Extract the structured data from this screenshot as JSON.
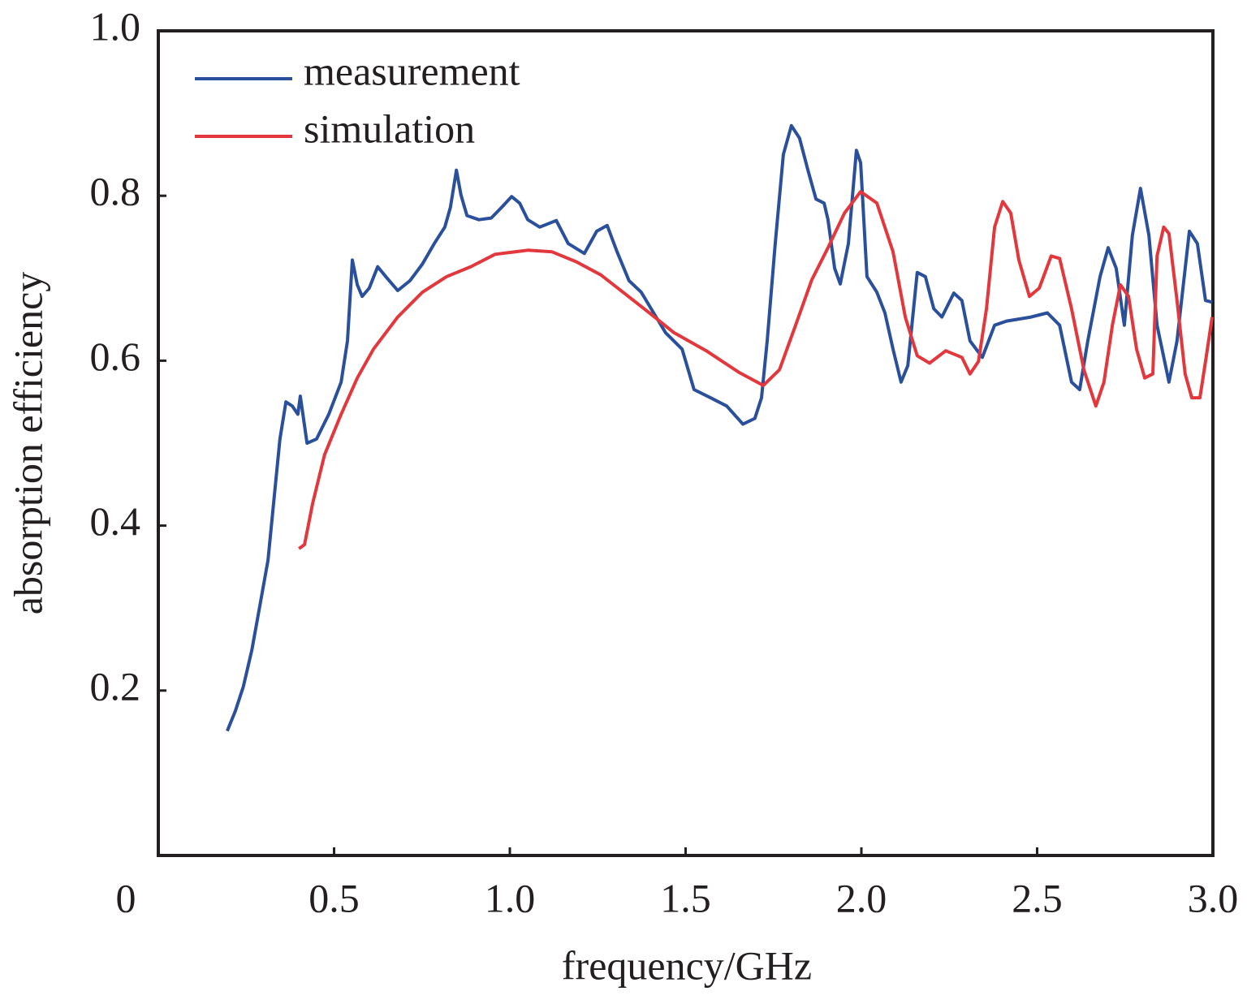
{
  "chart_data": {
    "type": "line",
    "x_label": "frequency/GHz",
    "y_label": "absorption efficiency",
    "xlim": [
      0,
      3
    ],
    "ylim": [
      0,
      1
    ],
    "xticks": [
      0,
      0.5,
      {
        "value": 1,
        "label": "1.0"
      },
      1.5,
      {
        "value": 2,
        "label": "2.0"
      },
      2.5,
      {
        "value": 3,
        "label": "3.0"
      }
    ],
    "yticks": [
      0.2,
      0.4,
      0.6,
      0.8,
      {
        "value": 1,
        "label": "1.0"
      }
    ],
    "legend": "upper left",
    "series": [
      {
        "name": "measurement",
        "color": "#2b509b",
        "x": [
          0.196,
          0.219,
          0.242,
          0.266,
          0.289,
          0.312,
          0.33,
          0.346,
          0.363,
          0.381,
          0.397,
          0.404,
          0.423,
          0.45,
          0.485,
          0.52,
          0.538,
          0.552,
          0.566,
          0.58,
          0.6,
          0.624,
          0.647,
          0.681,
          0.716,
          0.751,
          0.785,
          0.815,
          0.831,
          0.848,
          0.861,
          0.878,
          0.912,
          0.947,
          0.977,
          1.005,
          1.028,
          1.051,
          1.085,
          1.132,
          1.166,
          1.212,
          1.247,
          1.277,
          1.305,
          1.339,
          1.374,
          1.409,
          1.443,
          1.49,
          1.524,
          1.571,
          1.617,
          1.663,
          1.697,
          1.716,
          1.732,
          1.755,
          1.778,
          1.801,
          1.824,
          1.848,
          1.871,
          1.894,
          1.905,
          1.924,
          1.94,
          1.963,
          1.986,
          1.998,
          2.016,
          2.044,
          2.067,
          2.09,
          2.113,
          2.132,
          2.159,
          2.182,
          2.206,
          2.229,
          2.263,
          2.286,
          2.309,
          2.344,
          2.379,
          2.413,
          2.483,
          2.529,
          2.564,
          2.598,
          2.621,
          2.644,
          2.679,
          2.702,
          2.725,
          2.748,
          2.771,
          2.794,
          2.818,
          2.841,
          2.875,
          2.898,
          2.933,
          2.956,
          2.979,
          2.998
        ],
        "values": [
          0.151,
          0.175,
          0.205,
          0.249,
          0.303,
          0.358,
          0.436,
          0.505,
          0.55,
          0.545,
          0.535,
          0.557,
          0.5,
          0.505,
          0.535,
          0.574,
          0.624,
          0.722,
          0.692,
          0.678,
          0.688,
          0.714,
          0.702,
          0.685,
          0.697,
          0.717,
          0.742,
          0.762,
          0.786,
          0.831,
          0.801,
          0.776,
          0.771,
          0.773,
          0.786,
          0.799,
          0.791,
          0.771,
          0.762,
          0.77,
          0.742,
          0.73,
          0.757,
          0.764,
          0.732,
          0.697,
          0.683,
          0.658,
          0.634,
          0.614,
          0.565,
          0.555,
          0.545,
          0.523,
          0.53,
          0.555,
          0.624,
          0.742,
          0.85,
          0.885,
          0.87,
          0.831,
          0.796,
          0.791,
          0.771,
          0.712,
          0.693,
          0.742,
          0.855,
          0.84,
          0.702,
          0.683,
          0.658,
          0.614,
          0.574,
          0.594,
          0.707,
          0.702,
          0.663,
          0.653,
          0.682,
          0.673,
          0.624,
          0.604,
          0.643,
          0.648,
          0.653,
          0.658,
          0.643,
          0.574,
          0.565,
          0.624,
          0.702,
          0.737,
          0.712,
          0.643,
          0.752,
          0.809,
          0.752,
          0.643,
          0.574,
          0.624,
          0.757,
          0.742,
          0.673,
          0.671
        ]
      },
      {
        "name": "simulation",
        "color": "#e2383d",
        "x": [
          0.4,
          0.416,
          0.439,
          0.473,
          0.52,
          0.566,
          0.612,
          0.681,
          0.751,
          0.82,
          0.889,
          0.958,
          1.051,
          1.12,
          1.189,
          1.259,
          1.328,
          1.397,
          1.467,
          1.559,
          1.651,
          1.721,
          1.767,
          1.813,
          1.859,
          1.905,
          1.952,
          1.998,
          2.044,
          2.09,
          2.125,
          2.159,
          2.194,
          2.24,
          2.286,
          2.309,
          2.333,
          2.356,
          2.379,
          2.402,
          2.425,
          2.448,
          2.478,
          2.506,
          2.54,
          2.564,
          2.598,
          2.633,
          2.667,
          2.69,
          2.714,
          2.737,
          2.76,
          2.783,
          2.806,
          2.829,
          2.841,
          2.86,
          2.875,
          2.898,
          2.921,
          2.94,
          2.963,
          2.979,
          2.998
        ],
        "values": [
          0.372,
          0.377,
          0.427,
          0.486,
          0.535,
          0.579,
          0.614,
          0.653,
          0.683,
          0.702,
          0.714,
          0.729,
          0.734,
          0.732,
          0.72,
          0.704,
          0.681,
          0.658,
          0.634,
          0.612,
          0.586,
          0.57,
          0.589,
          0.643,
          0.698,
          0.737,
          0.779,
          0.805,
          0.791,
          0.732,
          0.653,
          0.606,
          0.597,
          0.612,
          0.604,
          0.584,
          0.599,
          0.663,
          0.762,
          0.793,
          0.779,
          0.722,
          0.678,
          0.688,
          0.727,
          0.724,
          0.663,
          0.589,
          0.545,
          0.574,
          0.643,
          0.692,
          0.678,
          0.614,
          0.579,
          0.584,
          0.727,
          0.762,
          0.754,
          0.673,
          0.584,
          0.555,
          0.555,
          0.599,
          0.653
        ]
      }
    ]
  }
}
